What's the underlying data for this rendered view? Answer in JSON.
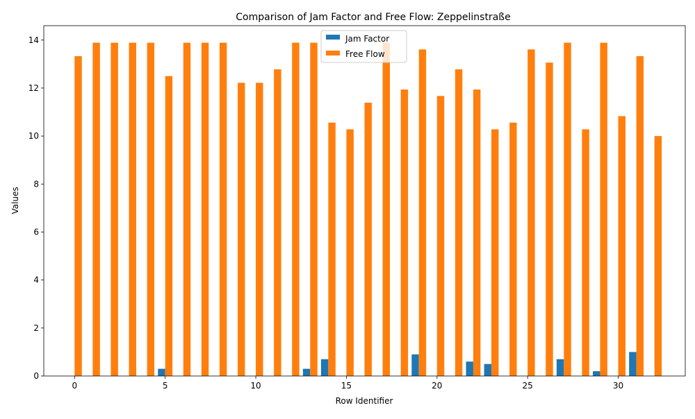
{
  "chart_data": {
    "type": "bar",
    "title": "Comparison of Jam Factor and Free Flow: Zeppelinstraße",
    "xlabel": "Row Identifier",
    "ylabel": "Values",
    "xlim": [
      -1.7,
      33.7
    ],
    "ylim": [
      0,
      14.6
    ],
    "xticks": [
      0,
      5,
      10,
      15,
      20,
      25,
      30
    ],
    "yticks": [
      0,
      2,
      4,
      6,
      8,
      10,
      12,
      14
    ],
    "legend_position": "upper center",
    "grid": false,
    "x": [
      0,
      1,
      2,
      3,
      4,
      5,
      6,
      7,
      8,
      9,
      10,
      11,
      12,
      13,
      14,
      15,
      16,
      17,
      18,
      19,
      20,
      21,
      22,
      23,
      24,
      25,
      26,
      27,
      28,
      29,
      30,
      31,
      32
    ],
    "series": [
      {
        "name": "Jam Factor",
        "color": "#1f77b4",
        "values": [
          0,
          0,
          0,
          0,
          0,
          0.3,
          0,
          0,
          0,
          0,
          0,
          0,
          0,
          0.3,
          0.7,
          0,
          0,
          0,
          0,
          0.9,
          0,
          0,
          0.6,
          0.5,
          0,
          0,
          0,
          0.7,
          0,
          0.2,
          0,
          1.0,
          0
        ]
      },
      {
        "name": "Free Flow",
        "color": "#ff7f0e",
        "values": [
          13.33,
          13.89,
          13.89,
          13.89,
          13.89,
          12.5,
          13.89,
          13.89,
          13.89,
          12.22,
          12.22,
          12.78,
          13.89,
          13.89,
          10.56,
          10.28,
          11.39,
          13.89,
          11.94,
          13.61,
          11.67,
          12.78,
          11.94,
          10.28,
          10.56,
          13.61,
          13.06,
          13.89,
          10.28,
          13.89,
          10.83,
          13.33,
          10.0
        ]
      }
    ]
  }
}
